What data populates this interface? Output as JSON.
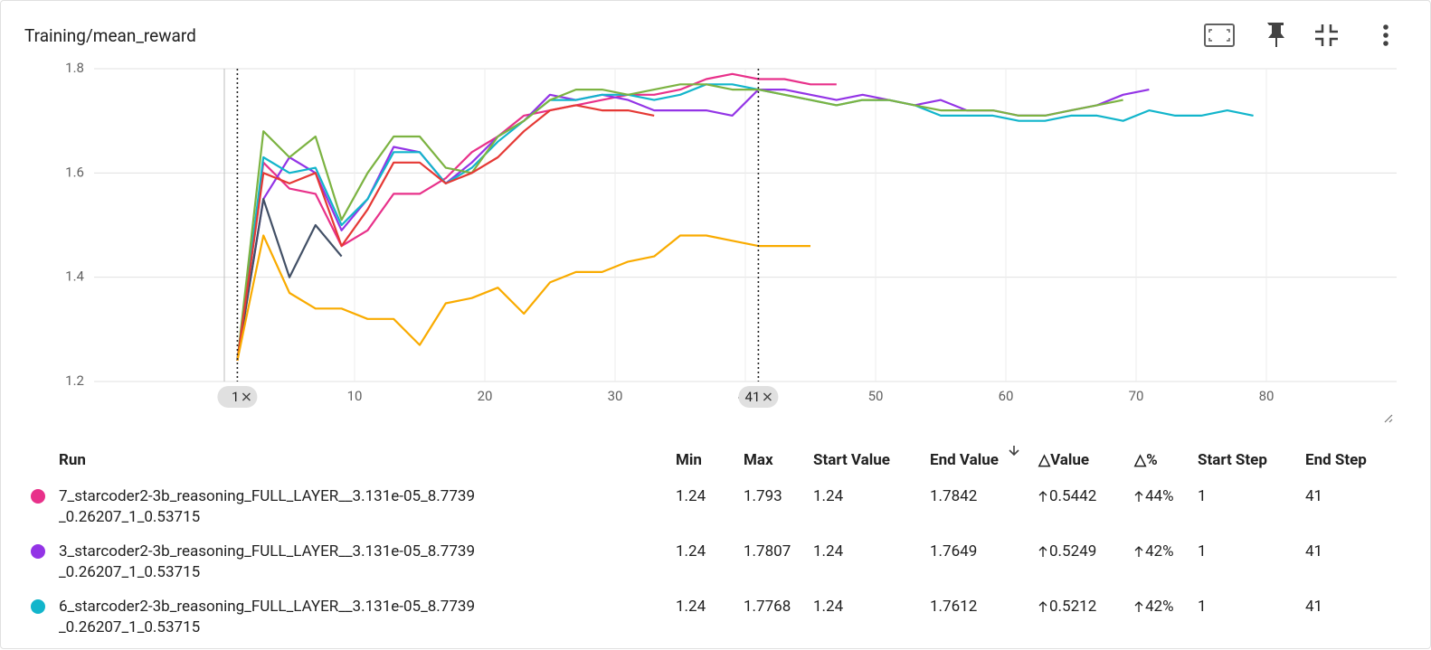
{
  "header": {
    "title": "Training/mean_reward"
  },
  "chart_data": {
    "type": "line",
    "x": [
      1,
      3,
      5,
      7,
      9,
      11,
      13,
      15,
      17,
      19,
      21,
      23,
      25,
      27,
      29,
      31,
      33,
      35,
      37,
      39,
      41,
      43,
      45,
      47,
      49,
      51,
      53,
      55,
      57,
      59,
      61,
      63,
      65,
      67,
      69,
      71,
      73,
      75,
      77,
      79
    ],
    "series": [
      {
        "name": "7_starcoder2-3b_reasoning_FULL_LAYER__3.131e-05_8.7739_0.26207_1_0.53715",
        "color": "#e8318a",
        "values": [
          1.24,
          1.62,
          1.57,
          1.56,
          1.46,
          1.49,
          1.56,
          1.56,
          1.59,
          1.64,
          1.67,
          1.71,
          1.72,
          1.73,
          1.74,
          1.75,
          1.75,
          1.76,
          1.78,
          1.79,
          1.78,
          1.78,
          1.77,
          1.77,
          null,
          null,
          null,
          null,
          null,
          null,
          null,
          null,
          null,
          null,
          null,
          null,
          null,
          null,
          null,
          null
        ]
      },
      {
        "name": "3_starcoder2-3b_reasoning_FULL_LAYER__3.131e-05_8.7739_0.26207_1_0.53715",
        "color": "#9334e6",
        "values": [
          1.24,
          1.55,
          1.63,
          1.6,
          1.49,
          1.55,
          1.65,
          1.64,
          1.58,
          1.62,
          1.67,
          1.7,
          1.75,
          1.74,
          1.75,
          1.74,
          1.72,
          1.72,
          1.72,
          1.71,
          1.76,
          1.76,
          1.75,
          1.74,
          1.75,
          1.74,
          1.73,
          1.74,
          1.72,
          1.72,
          1.71,
          1.71,
          1.72,
          1.73,
          1.75,
          1.76,
          null,
          null,
          null,
          null
        ]
      },
      {
        "name": "6_starcoder2-3b_reasoning_FULL_LAYER__3.131e-05_8.7739_0.26207_1_0.53715",
        "color": "#12b5cb",
        "values": [
          1.24,
          1.63,
          1.6,
          1.61,
          1.5,
          1.55,
          1.64,
          1.64,
          1.58,
          1.61,
          1.66,
          1.7,
          1.74,
          1.74,
          1.75,
          1.75,
          1.74,
          1.75,
          1.77,
          1.77,
          1.76,
          1.75,
          1.74,
          1.73,
          1.74,
          1.74,
          1.73,
          1.71,
          1.71,
          1.71,
          1.7,
          1.7,
          1.71,
          1.71,
          1.7,
          1.72,
          1.71,
          1.71,
          1.72,
          1.71
        ]
      },
      {
        "color": "#7cb342",
        "values": [
          1.24,
          1.68,
          1.63,
          1.67,
          1.51,
          1.6,
          1.67,
          1.67,
          1.61,
          1.6,
          1.67,
          1.7,
          1.74,
          1.76,
          1.76,
          1.75,
          1.76,
          1.77,
          1.77,
          1.76,
          1.76,
          1.75,
          1.74,
          1.73,
          1.74,
          1.74,
          1.73,
          1.72,
          1.72,
          1.72,
          1.71,
          1.71,
          1.72,
          1.73,
          1.74,
          null,
          null,
          null,
          null,
          null
        ]
      },
      {
        "color": "#425066",
        "values": [
          1.24,
          1.55,
          1.4,
          1.5,
          1.44,
          null,
          null,
          null,
          null,
          null,
          null,
          null,
          null,
          null,
          null,
          null,
          null,
          null,
          null,
          null,
          null,
          null,
          null,
          null,
          null,
          null,
          null,
          null,
          null,
          null,
          null,
          null,
          null,
          null,
          null,
          null,
          null,
          null,
          null,
          null
        ]
      },
      {
        "color": "#e53935",
        "values": [
          1.24,
          1.6,
          1.58,
          1.6,
          1.46,
          1.53,
          1.62,
          1.62,
          1.58,
          1.6,
          1.63,
          1.68,
          1.72,
          1.73,
          1.72,
          1.72,
          1.71,
          null,
          null,
          null,
          null,
          null,
          null,
          null,
          null,
          null,
          null,
          null,
          null,
          null,
          null,
          null,
          null,
          null,
          null,
          null,
          null,
          null,
          null,
          null
        ]
      },
      {
        "color": "#f9ab00",
        "values": [
          1.24,
          1.48,
          1.37,
          1.34,
          1.34,
          1.32,
          1.32,
          1.27,
          1.35,
          1.36,
          1.38,
          1.33,
          1.39,
          1.41,
          1.41,
          1.43,
          1.44,
          1.48,
          1.48,
          1.47,
          1.46,
          1.46,
          1.46,
          null,
          null,
          null,
          null,
          null,
          null,
          null,
          null,
          null,
          null,
          null,
          null,
          null,
          null,
          null,
          null,
          null
        ]
      }
    ],
    "xlim": [
      -10,
      90
    ],
    "xticks": [
      10,
      20,
      30,
      40,
      50,
      60,
      70,
      80
    ],
    "ylim": [
      1.2,
      1.8
    ],
    "yticks": [
      1.2,
      1.4,
      1.6,
      1.8
    ],
    "grid": true,
    "step_markers": [
      1,
      41
    ]
  },
  "table": {
    "columns": [
      "Run",
      "Min",
      "Max",
      "Start Value",
      "End Value",
      "△Value",
      "△%",
      "Start Step",
      "End Step"
    ],
    "rows": [
      {
        "color": "#e8318a",
        "cells": [
          "7_starcoder2-3b_reasoning_FULL_LAYER__3.131e-05_8.7739_0.26207_1_0.53715",
          1.24,
          1.793,
          1.24,
          1.7842,
          0.5442,
          "44%",
          1,
          41
        ]
      },
      {
        "color": "#9334e6",
        "cells": [
          "3_starcoder2-3b_reasoning_FULL_LAYER__3.131e-05_8.7739_0.26207_1_0.53715",
          1.24,
          1.7807,
          1.24,
          1.7649,
          0.5249,
          "42%",
          1,
          41
        ]
      },
      {
        "color": "#12b5cb",
        "cells": [
          "6_starcoder2-3b_reasoning_FULL_LAYER__3.131e-05_8.7739_0.26207_1_0.53715",
          1.24,
          1.7768,
          1.24,
          1.7612,
          0.5212,
          "42%",
          1,
          41
        ]
      }
    ]
  }
}
